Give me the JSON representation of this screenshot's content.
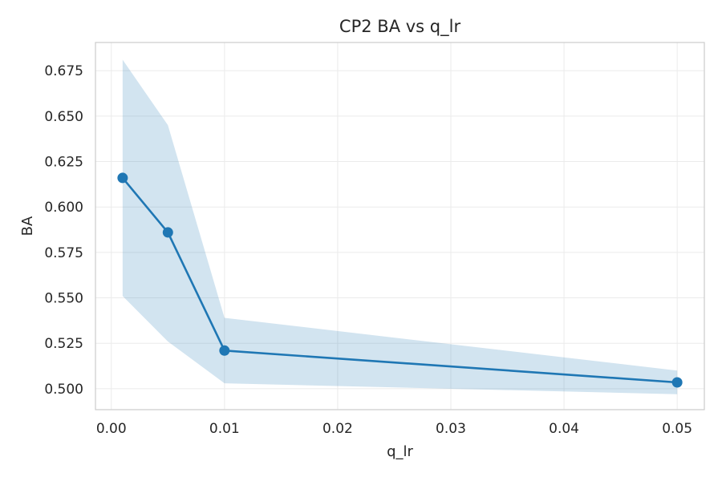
{
  "chart_data": {
    "type": "line",
    "title": "CP2 BA vs q_lr",
    "xlabel": "q_lr",
    "ylabel": "BA",
    "xlim": [
      -0.0014,
      0.0524
    ],
    "ylim": [
      0.4885,
      0.6905
    ],
    "x_ticks": [
      0.0,
      0.01,
      0.02,
      0.03,
      0.04,
      0.05
    ],
    "x_tick_labels": [
      "0.00",
      "0.01",
      "0.02",
      "0.03",
      "0.04",
      "0.05"
    ],
    "y_ticks": [
      0.5,
      0.525,
      0.55,
      0.575,
      0.6,
      0.625,
      0.65,
      0.675
    ],
    "y_tick_labels": [
      "0.500",
      "0.525",
      "0.550",
      "0.575",
      "0.600",
      "0.625",
      "0.650",
      "0.675"
    ],
    "grid": true,
    "series": [
      {
        "x": [
          0.001,
          0.005,
          0.01,
          0.05
        ],
        "y": [
          0.616,
          0.586,
          0.521,
          0.5035
        ],
        "band_lower": [
          0.551,
          0.526,
          0.503,
          0.497
        ],
        "band_upper": [
          0.681,
          0.645,
          0.539,
          0.51
        ],
        "color": "#1f77b4",
        "band_color": "#1f77b4"
      }
    ]
  }
}
